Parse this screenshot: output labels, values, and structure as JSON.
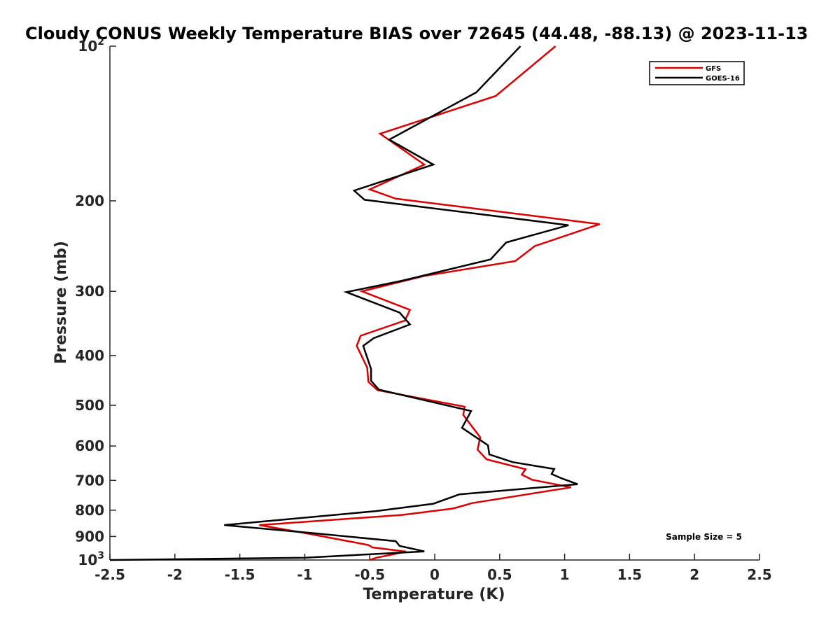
{
  "chart_data": {
    "type": "line",
    "title": "Cloudy CONUS Weekly Temperature BIAS over 72645 (44.48, -88.13) @ 2023-11-13",
    "xlabel": "Temperature (K)",
    "ylabel": "Pressure (mb)",
    "xlim": [
      -2.5,
      2.5
    ],
    "ylim": [
      100,
      1000
    ],
    "y_scale": "log",
    "y_reversed": true,
    "grid": false,
    "legend_position": "top-right",
    "x_ticks": [
      "-2.5",
      "-2",
      "-1.5",
      "-1",
      "-0.5",
      "0",
      "0.5",
      "1",
      "1.5",
      "2",
      "2.5"
    ],
    "x_tick_values": [
      -2.5,
      -2,
      -1.5,
      -1,
      -0.5,
      0,
      0.5,
      1,
      1.5,
      2,
      2.5
    ],
    "y_ticks": [
      {
        "value": 100,
        "base": "10",
        "exp": "2"
      },
      {
        "value": 200,
        "label": "200"
      },
      {
        "value": 300,
        "label": "300"
      },
      {
        "value": 400,
        "label": "400"
      },
      {
        "value": 500,
        "label": "500"
      },
      {
        "value": 600,
        "label": "600"
      },
      {
        "value": 700,
        "label": "700"
      },
      {
        "value": 800,
        "label": "800"
      },
      {
        "value": 900,
        "label": "900"
      },
      {
        "value": 1000,
        "base": "10",
        "exp": "3"
      }
    ],
    "annotation": "Sample Size = 5",
    "series": [
      {
        "name": "GFS",
        "color": "#dd0000",
        "points": [
          [
            0.93,
            100
          ],
          [
            0.47,
            125
          ],
          [
            -0.42,
            148
          ],
          [
            -0.08,
            170
          ],
          [
            -0.5,
            190
          ],
          [
            -0.3,
            198
          ],
          [
            1.27,
            222
          ],
          [
            0.77,
            245
          ],
          [
            0.62,
            262
          ],
          [
            -0.08,
            280
          ],
          [
            -0.56,
            300
          ],
          [
            -0.19,
            326
          ],
          [
            -0.23,
            342
          ],
          [
            -0.57,
            366
          ],
          [
            -0.6,
            383
          ],
          [
            -0.52,
            422
          ],
          [
            -0.51,
            450
          ],
          [
            -0.44,
            467
          ],
          [
            0.23,
            503
          ],
          [
            0.22,
            522
          ],
          [
            0.35,
            577
          ],
          [
            0.33,
            610
          ],
          [
            0.4,
            637
          ],
          [
            0.7,
            666
          ],
          [
            0.67,
            682
          ],
          [
            0.75,
            698
          ],
          [
            1.05,
            722
          ],
          [
            0.29,
            775
          ],
          [
            0.14,
            794
          ],
          [
            -0.25,
            817
          ],
          [
            -1.35,
            855
          ],
          [
            -0.98,
            888
          ],
          [
            -0.51,
            935
          ],
          [
            -0.48,
            945
          ],
          [
            -0.22,
            963
          ],
          [
            -0.45,
            990
          ],
          [
            -0.5,
            1000
          ]
        ]
      },
      {
        "name": "GOES-16",
        "color": "#000000",
        "points": [
          [
            0.66,
            100
          ],
          [
            0.32,
            123
          ],
          [
            -0.35,
            152
          ],
          [
            -0.01,
            170
          ],
          [
            -0.62,
            191
          ],
          [
            -0.54,
            199
          ],
          [
            1.03,
            223
          ],
          [
            0.55,
            241
          ],
          [
            0.43,
            260
          ],
          [
            -0.25,
            286
          ],
          [
            -0.68,
            301
          ],
          [
            -0.27,
            330
          ],
          [
            -0.19,
            348
          ],
          [
            -0.47,
            370
          ],
          [
            -0.55,
            383
          ],
          [
            -0.49,
            425
          ],
          [
            -0.49,
            448
          ],
          [
            -0.43,
            466
          ],
          [
            0.28,
            513
          ],
          [
            0.21,
            553
          ],
          [
            0.41,
            598
          ],
          [
            0.42,
            623
          ],
          [
            0.6,
            645
          ],
          [
            0.92,
            665
          ],
          [
            0.9,
            680
          ],
          [
            0.98,
            694
          ],
          [
            1.1,
            712
          ],
          [
            0.19,
            745
          ],
          [
            -0.01,
            777
          ],
          [
            -0.45,
            803
          ],
          [
            -1.62,
            855
          ],
          [
            -0.93,
            887
          ],
          [
            -0.3,
            919
          ],
          [
            -0.27,
            939
          ],
          [
            -0.08,
            962
          ],
          [
            -1.0,
            990
          ],
          [
            -2.5,
            1000
          ]
        ]
      }
    ]
  }
}
